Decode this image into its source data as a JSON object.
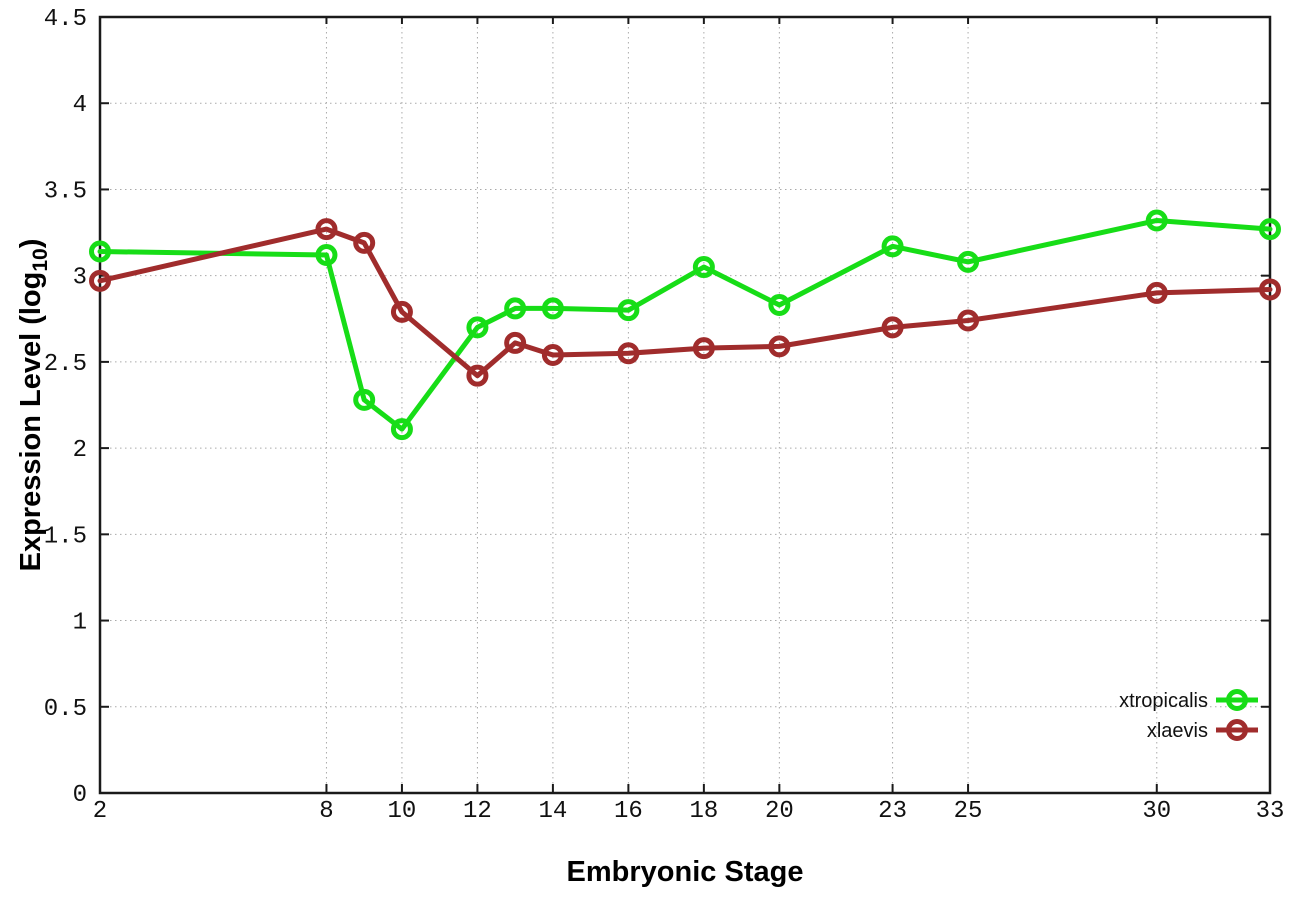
{
  "page": {
    "background": "#ffffff"
  },
  "chart_data": {
    "type": "line",
    "title": "",
    "xlabel": "Embryonic Stage",
    "ylabel": "Expression Level (log10)",
    "ylabel_parts": {
      "main": "Expression Level (log",
      "sub": "10",
      "close": ")"
    },
    "x": [
      2,
      8,
      9,
      10,
      12,
      13,
      14,
      16,
      18,
      20,
      23,
      25,
      30,
      33
    ],
    "series": [
      {
        "name": "xtropicalis",
        "color": "#17dd17",
        "values": [
          3.14,
          3.12,
          2.28,
          2.11,
          2.7,
          2.81,
          2.81,
          2.8,
          3.05,
          2.83,
          3.17,
          3.08,
          3.32,
          3.27
        ]
      },
      {
        "name": "xlaevis",
        "color": "#a02c2c",
        "values": [
          2.97,
          3.27,
          3.19,
          2.79,
          2.42,
          2.61,
          2.54,
          2.55,
          2.58,
          2.59,
          2.7,
          2.74,
          2.9,
          2.92
        ]
      }
    ],
    "xticks": [
      2,
      8,
      10,
      12,
      14,
      16,
      18,
      20,
      23,
      25,
      30,
      33
    ],
    "yticks": [
      0,
      0.5,
      1,
      1.5,
      2,
      2.5,
      3,
      3.5,
      4,
      4.5
    ],
    "xlim": [
      2,
      33
    ],
    "ylim": [
      0,
      4.5
    ],
    "grid": true,
    "legend_position": "bottom-right",
    "marker": "open-circle",
    "style": {
      "grid_color": "#aaaaaa",
      "axis_color": "#1a1a1a",
      "background": "#ffffff"
    }
  }
}
